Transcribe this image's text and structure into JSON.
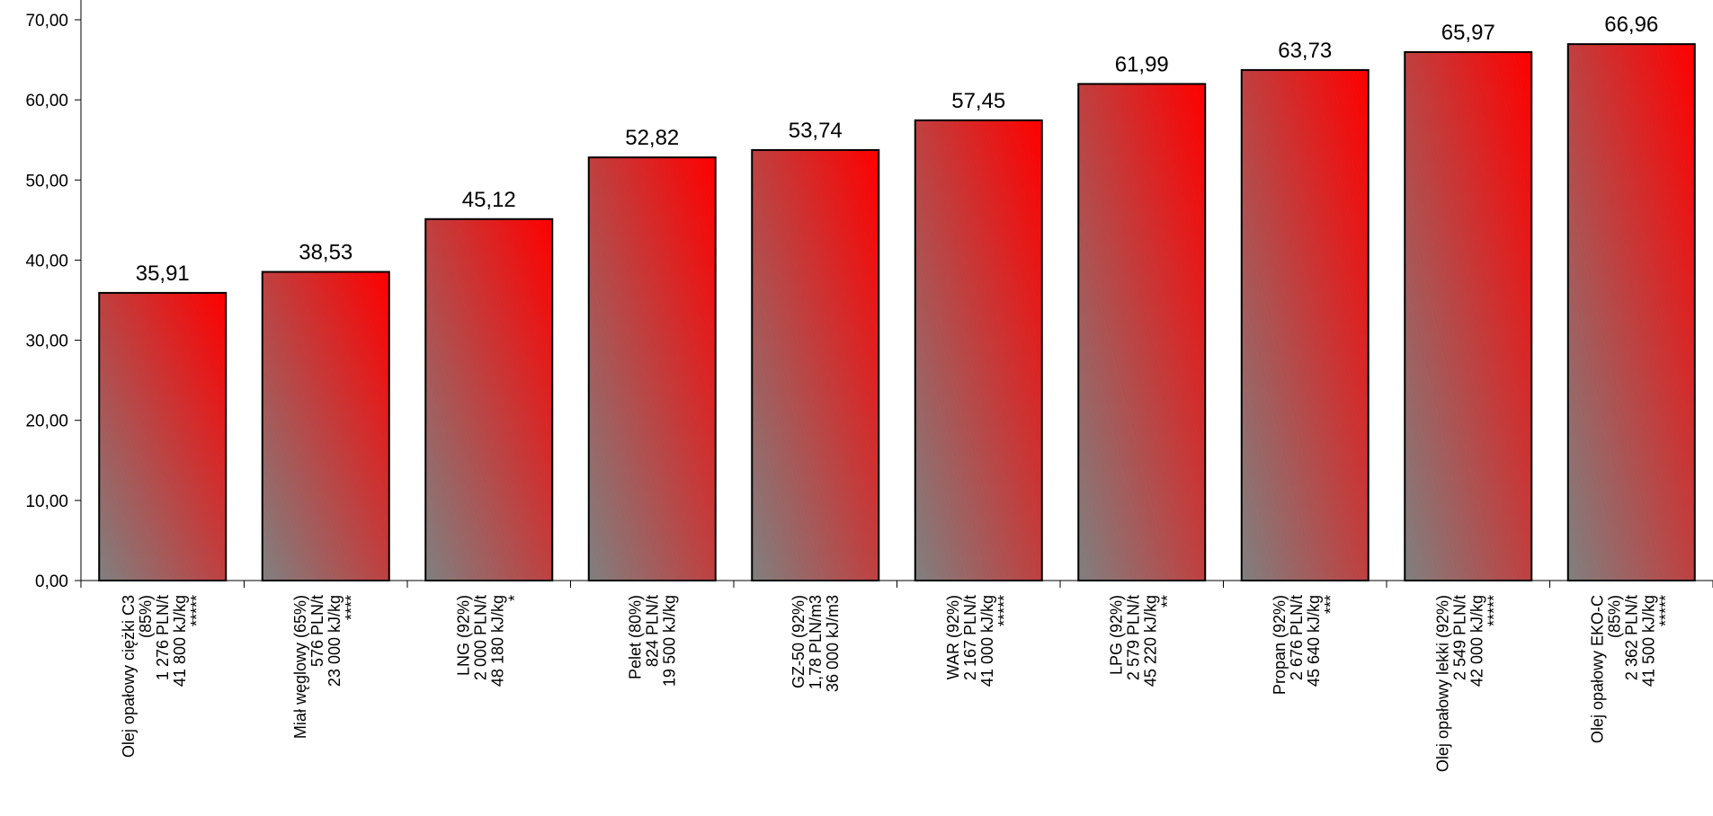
{
  "chart_data": {
    "type": "bar",
    "title": "",
    "xlabel": "",
    "ylabel": "",
    "ylim": [
      0,
      70
    ],
    "y_ticks": [
      "0,00",
      "10,00",
      "20,00",
      "30,00",
      "40,00",
      "50,00",
      "60,00",
      "70,00"
    ],
    "grid": false,
    "legend": "none",
    "colors": {
      "bar_start": "#808080",
      "bar_end": "#ff0000",
      "outline": "#000000"
    },
    "categories": [
      [
        "Olej opałowy ciężki C3",
        "(85%)",
        "1 276 PLN/t",
        "41 800 kJ/kg",
        "*****"
      ],
      [
        "Miał węglowy (65%)",
        "576 PLN/t",
        "23 000 kJ/kg",
        "****"
      ],
      [
        "LNG (92%)",
        "2 000 PLN/t",
        "48 180 kJ/kg",
        "*"
      ],
      [
        "Pelet (80%)",
        "824 PLN/t",
        "19 500 kJ/kg"
      ],
      [
        "GZ-50 (92%)",
        "1,78 PLN/m3",
        "36 000 kJ/m3"
      ],
      [
        "WAR (92%)",
        "2 167 PLN/t",
        "41 000 kJ/kg",
        "*****"
      ],
      [
        "LPG (92%)",
        "2 579 PLN/t",
        "45 220 kJ/kg",
        "**"
      ],
      [
        "Propan (92%)",
        "2 676 PLN/t",
        "45 640 kJ/kg",
        "***"
      ],
      [
        "Olej opałowy lekki (92%)",
        "2 549 PLN/t",
        "42 000 kJ/kg",
        "*****"
      ],
      [
        "Olej opałowy EKO-C",
        "(85%)",
        "2 362 PLN/t",
        "41 500 kJ/kg",
        "*****"
      ]
    ],
    "values": [
      35.91,
      38.53,
      45.12,
      52.82,
      53.74,
      57.45,
      61.99,
      63.73,
      65.97,
      66.96
    ],
    "value_labels": [
      "35,91",
      "38,53",
      "45,12",
      "52,82",
      "53,74",
      "57,45",
      "61,99",
      "63,73",
      "65,97",
      "66,96"
    ]
  }
}
